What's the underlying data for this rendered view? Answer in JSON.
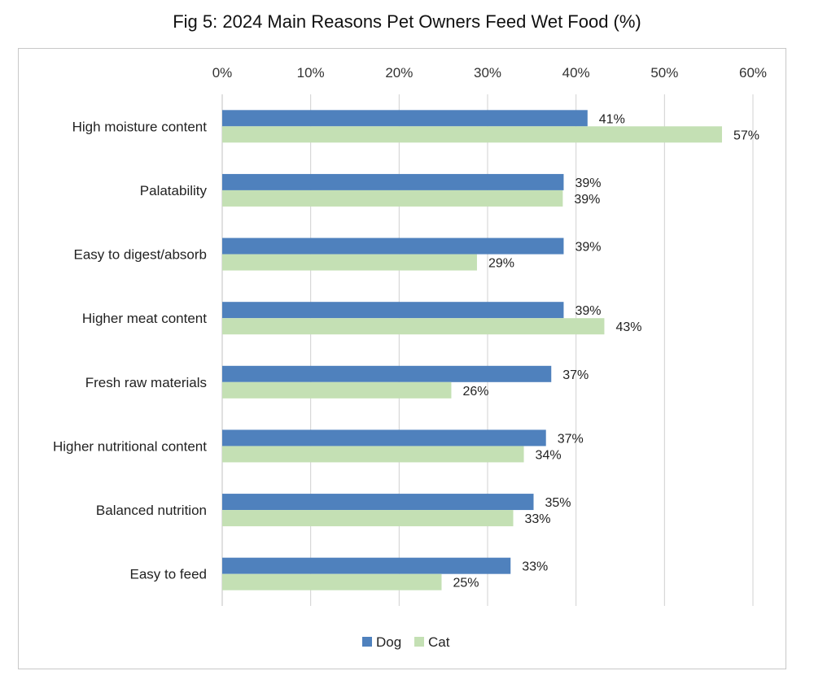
{
  "chart_data": {
    "type": "bar",
    "orientation": "horizontal",
    "title": "Fig 5: 2024 Main Reasons Pet Owners Feed Wet Food (%)",
    "xlabel": "",
    "ylabel": "",
    "xlim": [
      0,
      60
    ],
    "x_ticks": [
      "0%",
      "10%",
      "20%",
      "30%",
      "40%",
      "50%",
      "60%"
    ],
    "x_tick_values": [
      0,
      10,
      20,
      30,
      40,
      50,
      60
    ],
    "grid": true,
    "legend": "bottom",
    "categories": [
      "High moisture content",
      "Palatability",
      "Easy to digest/absorb",
      "Higher meat content",
      "Fresh raw materials",
      "Higher nutritional content",
      "Balanced nutrition",
      "Easy to feed"
    ],
    "series": [
      {
        "name": "Dog",
        "color": "#4f81bd",
        "values": [
          41.3,
          38.6,
          38.6,
          38.6,
          37.2,
          36.6,
          35.2,
          32.6
        ],
        "labels": [
          "41%",
          "39%",
          "39%",
          "39%",
          "37%",
          "37%",
          "35%",
          "33%"
        ]
      },
      {
        "name": "Cat",
        "color": "#c4e0b4",
        "values": [
          56.5,
          38.5,
          28.8,
          43.2,
          25.9,
          34.1,
          32.9,
          24.8
        ],
        "labels": [
          "57%",
          "39%",
          "29%",
          "43%",
          "26%",
          "34%",
          "33%",
          "25%"
        ]
      }
    ]
  }
}
